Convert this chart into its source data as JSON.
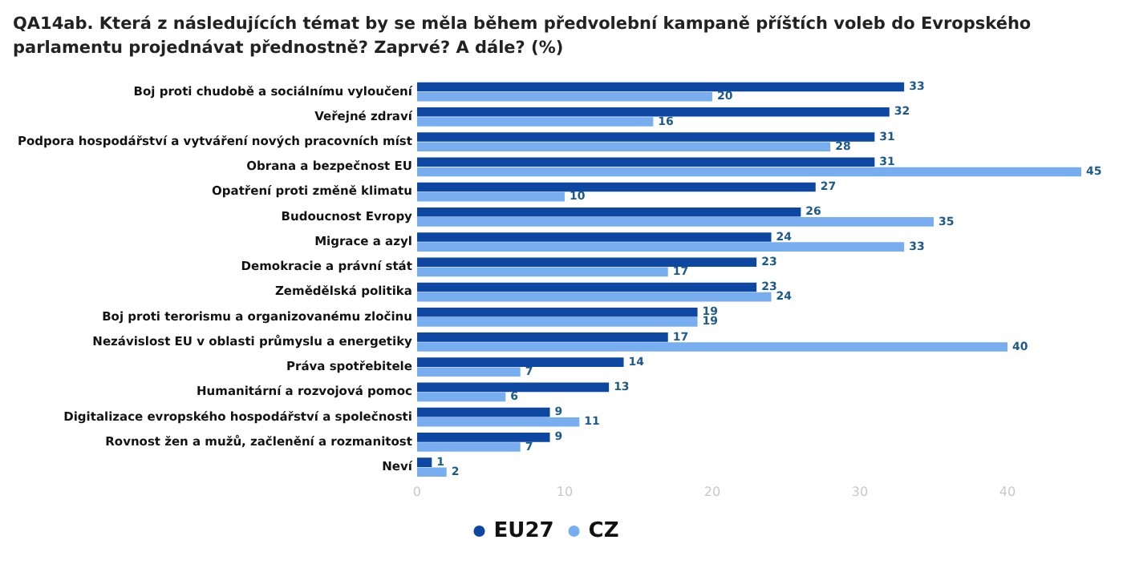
{
  "chart_data": {
    "type": "bar",
    "orientation": "horizontal",
    "title": "QA14ab. Která z následujících témat by se měla během předvolební kampaně příštích voleb do Evropského parlamentu projednávat přednostně? Zaprvé? A dále? (%)",
    "categories": [
      "Boj proti chudobě a sociálnímu vyloučení",
      "Veřejné zdraví",
      "Podpora hospodářství a vytváření nových pracovních míst",
      "Obrana a bezpečnost EU",
      "Opatření proti změně klimatu",
      "Budoucnost Evropy",
      "Migrace a azyl",
      "Demokracie a právní stát",
      "Zemědělská politika",
      "Boj proti terorismu a organizovanému zločinu",
      "Nezávislost EU v oblasti průmyslu a energetiky",
      "Práva spotřebitele",
      "Humanitární a rozvojová pomoc",
      "Digitalizace evropského hospodářství a společnosti",
      "Rovnost žen a mužů, začlenění a rozmanitost",
      "Neví"
    ],
    "series": [
      {
        "name": "EU27",
        "color": "#0d47a1",
        "values": [
          33,
          32,
          31,
          31,
          27,
          26,
          24,
          23,
          23,
          19,
          17,
          14,
          13,
          9,
          9,
          1
        ]
      },
      {
        "name": "CZ",
        "color": "#78aef0",
        "values": [
          20,
          16,
          28,
          45,
          10,
          35,
          33,
          17,
          24,
          19,
          40,
          7,
          6,
          11,
          7,
          2
        ]
      }
    ],
    "xlim": [
      0,
      45
    ],
    "xticks": [
      0,
      10,
      20,
      30,
      40
    ],
    "grid": false,
    "legend": "bottom",
    "data_labels": true
  }
}
